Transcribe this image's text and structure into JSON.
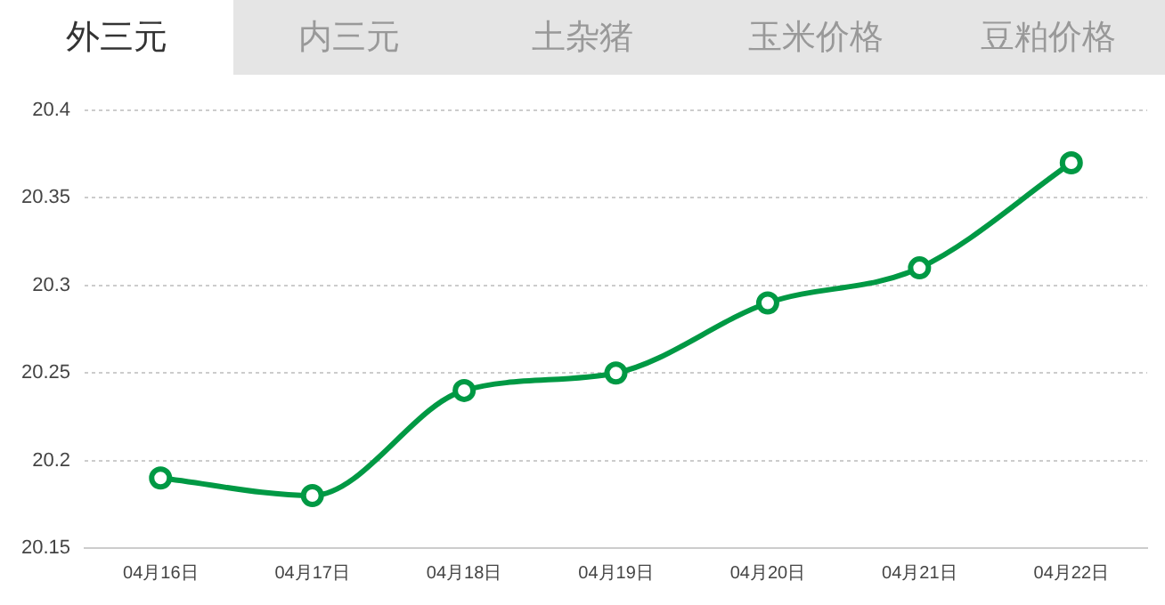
{
  "chart_data": {
    "type": "line",
    "title": "外三元",
    "annotations": [
      "内三元",
      "土杂猪",
      "玉米价格",
      "豆粕价格"
    ],
    "categories": [
      "04月16日",
      "04月17日",
      "04月18日",
      "04月19日",
      "04月20日",
      "04月21日",
      "04月22日"
    ],
    "series": [
      {
        "color": "#009944",
        "values": [
          20.19,
          20.18,
          20.24,
          20.25,
          20.29,
          20.31,
          20.37
        ]
      }
    ],
    "ylim": [
      20.15,
      20.4
    ],
    "yticks": [
      20.15,
      20.2,
      20.25,
      20.3,
      20.35,
      20.4
    ],
    "grid": "y",
    "marker": "circle",
    "legend": false
  }
}
